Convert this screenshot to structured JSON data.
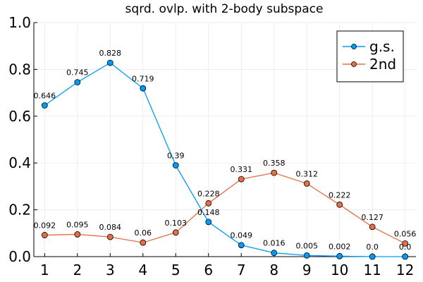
{
  "chart_data": {
    "type": "line",
    "title": "sqrd. ovlp. with 2-body subspace",
    "xlabel": "",
    "ylabel": "",
    "x": [
      1,
      2,
      3,
      4,
      5,
      6,
      7,
      8,
      9,
      10,
      11,
      12
    ],
    "xlim": [
      0.67,
      12.33
    ],
    "ylim": [
      0,
      1.0
    ],
    "yticks": [
      "0.0",
      "0.2",
      "0.4",
      "0.6",
      "0.8",
      "1.0"
    ],
    "xticks": [
      "1",
      "2",
      "3",
      "4",
      "5",
      "6",
      "7",
      "8",
      "9",
      "10",
      "11",
      "12"
    ],
    "grid": true,
    "legend_position": "top-right",
    "series": [
      {
        "name": "g.s.",
        "color": "#009AFA",
        "values": [
          0.646,
          0.745,
          0.828,
          0.719,
          0.39,
          0.148,
          0.049,
          0.016,
          0.005,
          0.002,
          0.0,
          0.0
        ],
        "labels": [
          "0.646",
          "0.745",
          "0.828",
          "0.719",
          "0.39",
          "0.148",
          "0.049",
          "0.016",
          "0.005",
          "0.002",
          "0.0",
          "0.0"
        ]
      },
      {
        "name": "2nd",
        "color": "#E26F46",
        "values": [
          0.092,
          0.095,
          0.084,
          0.06,
          0.103,
          0.228,
          0.331,
          0.358,
          0.312,
          0.222,
          0.127,
          0.056
        ],
        "labels": [
          "0.092",
          "0.095",
          "0.084",
          "0.06",
          "0.103",
          "0.228",
          "0.331",
          "0.358",
          "0.312",
          "0.222",
          "0.127",
          "0.056"
        ]
      }
    ]
  }
}
